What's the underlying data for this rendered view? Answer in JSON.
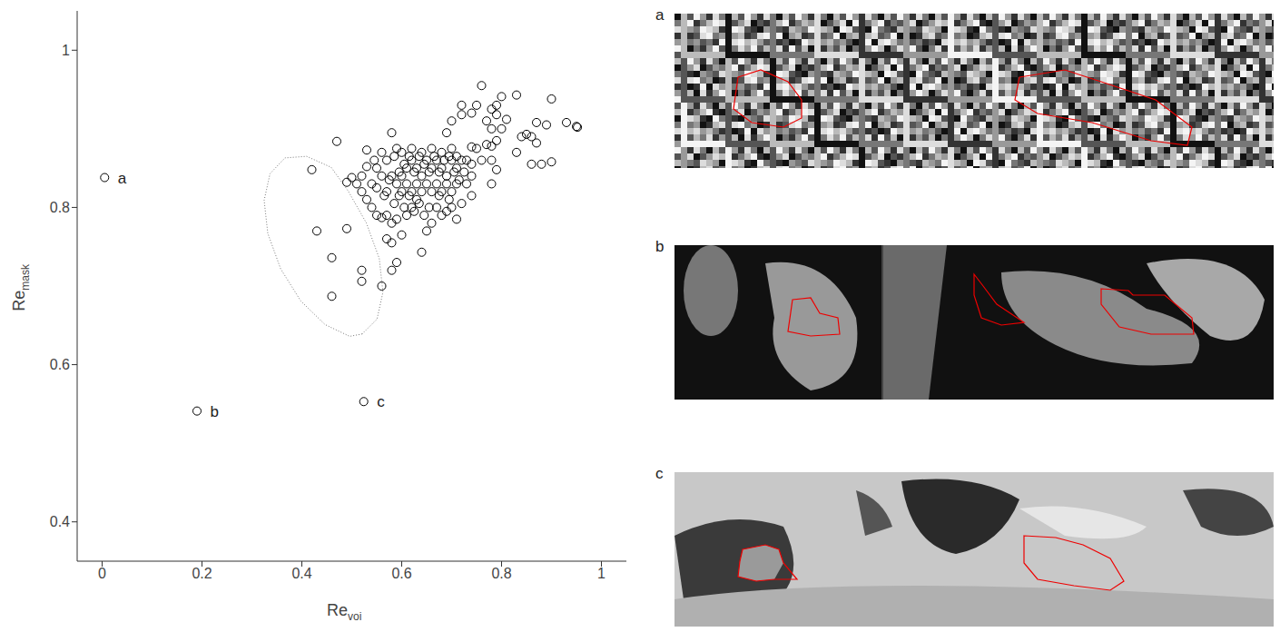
{
  "chart_data": {
    "type": "scatter",
    "x_label": {
      "base": "Re",
      "subscript": "voi"
    },
    "y_label": {
      "base": "Re",
      "subscript": "mask"
    },
    "xlim": [
      -0.05,
      1.05
    ],
    "xticks": [
      0,
      0.2,
      0.4,
      0.6,
      0.8,
      1
    ],
    "ylim": [
      0.35,
      1.05
    ],
    "yticks": [
      0.4,
      0.6,
      0.8,
      1
    ],
    "marker": "open_circle",
    "color": "#000000",
    "points": [
      [
        0.76,
        0.955
      ],
      [
        0.83,
        0.943
      ],
      [
        0.9,
        0.938
      ],
      [
        0.8,
        0.941
      ],
      [
        0.93,
        0.908
      ],
      [
        0.95,
        0.903
      ],
      [
        0.952,
        0.902
      ],
      [
        0.87,
        0.908
      ],
      [
        0.89,
        0.905
      ],
      [
        0.9,
        0.858
      ],
      [
        0.88,
        0.855
      ],
      [
        0.86,
        0.855
      ],
      [
        0.85,
        0.893
      ],
      [
        0.84,
        0.89
      ],
      [
        0.86,
        0.89
      ],
      [
        0.87,
        0.882
      ],
      [
        0.83,
        0.87
      ],
      [
        0.79,
        0.885
      ],
      [
        0.8,
        0.9
      ],
      [
        0.78,
        0.9
      ],
      [
        0.79,
        0.918
      ],
      [
        0.78,
        0.925
      ],
      [
        0.81,
        0.912
      ],
      [
        0.79,
        0.93
      ],
      [
        0.77,
        0.91
      ],
      [
        0.75,
        0.93
      ],
      [
        0.74,
        0.92
      ],
      [
        0.72,
        0.93
      ],
      [
        0.72,
        0.918
      ],
      [
        0.78,
        0.86
      ],
      [
        0.79,
        0.848
      ],
      [
        0.78,
        0.83
      ],
      [
        0.77,
        0.88
      ],
      [
        0.78,
        0.878
      ],
      [
        0.76,
        0.86
      ],
      [
        0.75,
        0.875
      ],
      [
        0.74,
        0.877
      ],
      [
        0.73,
        0.86
      ],
      [
        0.74,
        0.815
      ],
      [
        0.72,
        0.805
      ],
      [
        0.71,
        0.785
      ],
      [
        0.74,
        0.84
      ],
      [
        0.69,
        0.895
      ],
      [
        0.7,
        0.91
      ],
      [
        0.47,
        0.884
      ],
      [
        0.42,
        0.848
      ],
      [
        0.49,
        0.832
      ],
      [
        0.5,
        0.838
      ],
      [
        0.51,
        0.83
      ],
      [
        0.52,
        0.84
      ],
      [
        0.53,
        0.873
      ],
      [
        0.53,
        0.852
      ],
      [
        0.52,
        0.82
      ],
      [
        0.53,
        0.81
      ],
      [
        0.54,
        0.8
      ],
      [
        0.55,
        0.79
      ],
      [
        0.56,
        0.787
      ],
      [
        0.57,
        0.79
      ],
      [
        0.58,
        0.78
      ],
      [
        0.55,
        0.825
      ],
      [
        0.54,
        0.83
      ],
      [
        0.545,
        0.86
      ],
      [
        0.56,
        0.87
      ],
      [
        0.57,
        0.86
      ],
      [
        0.58,
        0.895
      ],
      [
        0.59,
        0.875
      ],
      [
        0.57,
        0.76
      ],
      [
        0.58,
        0.755
      ],
      [
        0.59,
        0.785
      ],
      [
        0.6,
        0.765
      ],
      [
        0.59,
        0.73
      ],
      [
        0.58,
        0.72
      ],
      [
        0.64,
        0.743
      ],
      [
        0.61,
        0.79
      ],
      [
        0.62,
        0.8
      ],
      [
        0.63,
        0.81
      ],
      [
        0.65,
        0.77
      ],
      [
        0.66,
        0.78
      ],
      [
        0.68,
        0.79
      ],
      [
        0.69,
        0.795
      ],
      [
        0.67,
        0.8
      ],
      [
        0.43,
        0.77
      ],
      [
        0.49,
        0.773
      ],
      [
        0.46,
        0.736
      ],
      [
        0.52,
        0.72
      ],
      [
        0.52,
        0.706
      ],
      [
        0.46,
        0.687
      ],
      [
        0.56,
        0.7
      ],
      [
        0.6,
        0.84
      ],
      [
        0.61,
        0.85
      ],
      [
        0.62,
        0.86
      ],
      [
        0.63,
        0.85
      ],
      [
        0.64,
        0.84
      ],
      [
        0.65,
        0.86
      ],
      [
        0.66,
        0.85
      ],
      [
        0.67,
        0.86
      ],
      [
        0.68,
        0.85
      ],
      [
        0.69,
        0.84
      ],
      [
        0.7,
        0.86
      ],
      [
        0.71,
        0.85
      ],
      [
        0.72,
        0.86
      ],
      [
        0.6,
        0.82
      ],
      [
        0.61,
        0.83
      ],
      [
        0.62,
        0.82
      ],
      [
        0.63,
        0.83
      ],
      [
        0.64,
        0.82
      ],
      [
        0.65,
        0.83
      ],
      [
        0.66,
        0.82
      ],
      [
        0.67,
        0.83
      ],
      [
        0.68,
        0.82
      ],
      [
        0.69,
        0.83
      ],
      [
        0.7,
        0.82
      ],
      [
        0.58,
        0.84
      ],
      [
        0.59,
        0.83
      ],
      [
        0.57,
        0.82
      ],
      [
        0.56,
        0.84
      ],
      [
        0.55,
        0.85
      ],
      [
        0.6,
        0.87
      ],
      [
        0.62,
        0.875
      ],
      [
        0.64,
        0.87
      ],
      [
        0.66,
        0.875
      ],
      [
        0.68,
        0.87
      ],
      [
        0.7,
        0.875
      ],
      [
        0.71,
        0.865
      ],
      [
        0.615,
        0.815
      ],
      [
        0.635,
        0.805
      ],
      [
        0.655,
        0.8
      ],
      [
        0.675,
        0.815
      ],
      [
        0.695,
        0.81
      ],
      [
        0.605,
        0.8
      ],
      [
        0.625,
        0.795
      ],
      [
        0.645,
        0.79
      ],
      [
        0.585,
        0.805
      ],
      [
        0.595,
        0.815
      ],
      [
        0.575,
        0.835
      ],
      [
        0.565,
        0.815
      ],
      [
        0.645,
        0.855
      ],
      [
        0.655,
        0.845
      ],
      [
        0.665,
        0.865
      ],
      [
        0.675,
        0.845
      ],
      [
        0.685,
        0.86
      ],
      [
        0.695,
        0.865
      ],
      [
        0.705,
        0.845
      ],
      [
        0.715,
        0.835
      ],
      [
        0.625,
        0.845
      ],
      [
        0.635,
        0.865
      ],
      [
        0.605,
        0.855
      ],
      [
        0.595,
        0.845
      ],
      [
        0.585,
        0.865
      ],
      [
        0.615,
        0.865
      ],
      [
        0.725,
        0.845
      ],
      [
        0.73,
        0.83
      ],
      [
        0.74,
        0.855
      ],
      [
        0.7,
        0.8
      ],
      [
        0.71,
        0.83
      ]
    ],
    "annotations": [
      {
        "text": "a",
        "x": 0.005,
        "y": 0.838
      },
      {
        "text": "b",
        "x": 0.19,
        "y": 0.541
      },
      {
        "text": "c",
        "x": 0.524,
        "y": 0.553
      }
    ],
    "ellipse_outline": [
      [
        0.5206,
        0.639
      ],
      [
        0.5506,
        0.658
      ],
      [
        0.5624,
        0.692
      ],
      [
        0.5551,
        0.735
      ],
      [
        0.5294,
        0.78
      ],
      [
        0.4927,
        0.821
      ],
      [
        0.4588,
        0.851
      ],
      [
        0.4096,
        0.865
      ],
      [
        0.3662,
        0.863
      ],
      [
        0.3363,
        0.843
      ],
      [
        0.3245,
        0.809
      ],
      [
        0.3318,
        0.767
      ],
      [
        0.3575,
        0.722
      ],
      [
        0.3978,
        0.681
      ],
      [
        0.4464,
        0.651
      ],
      [
        0.4958,
        0.636
      ],
      [
        0.5206,
        0.639
      ]
    ],
    "panels": [
      {
        "label": "a"
      },
      {
        "label": "b"
      },
      {
        "label": "c"
      }
    ]
  }
}
